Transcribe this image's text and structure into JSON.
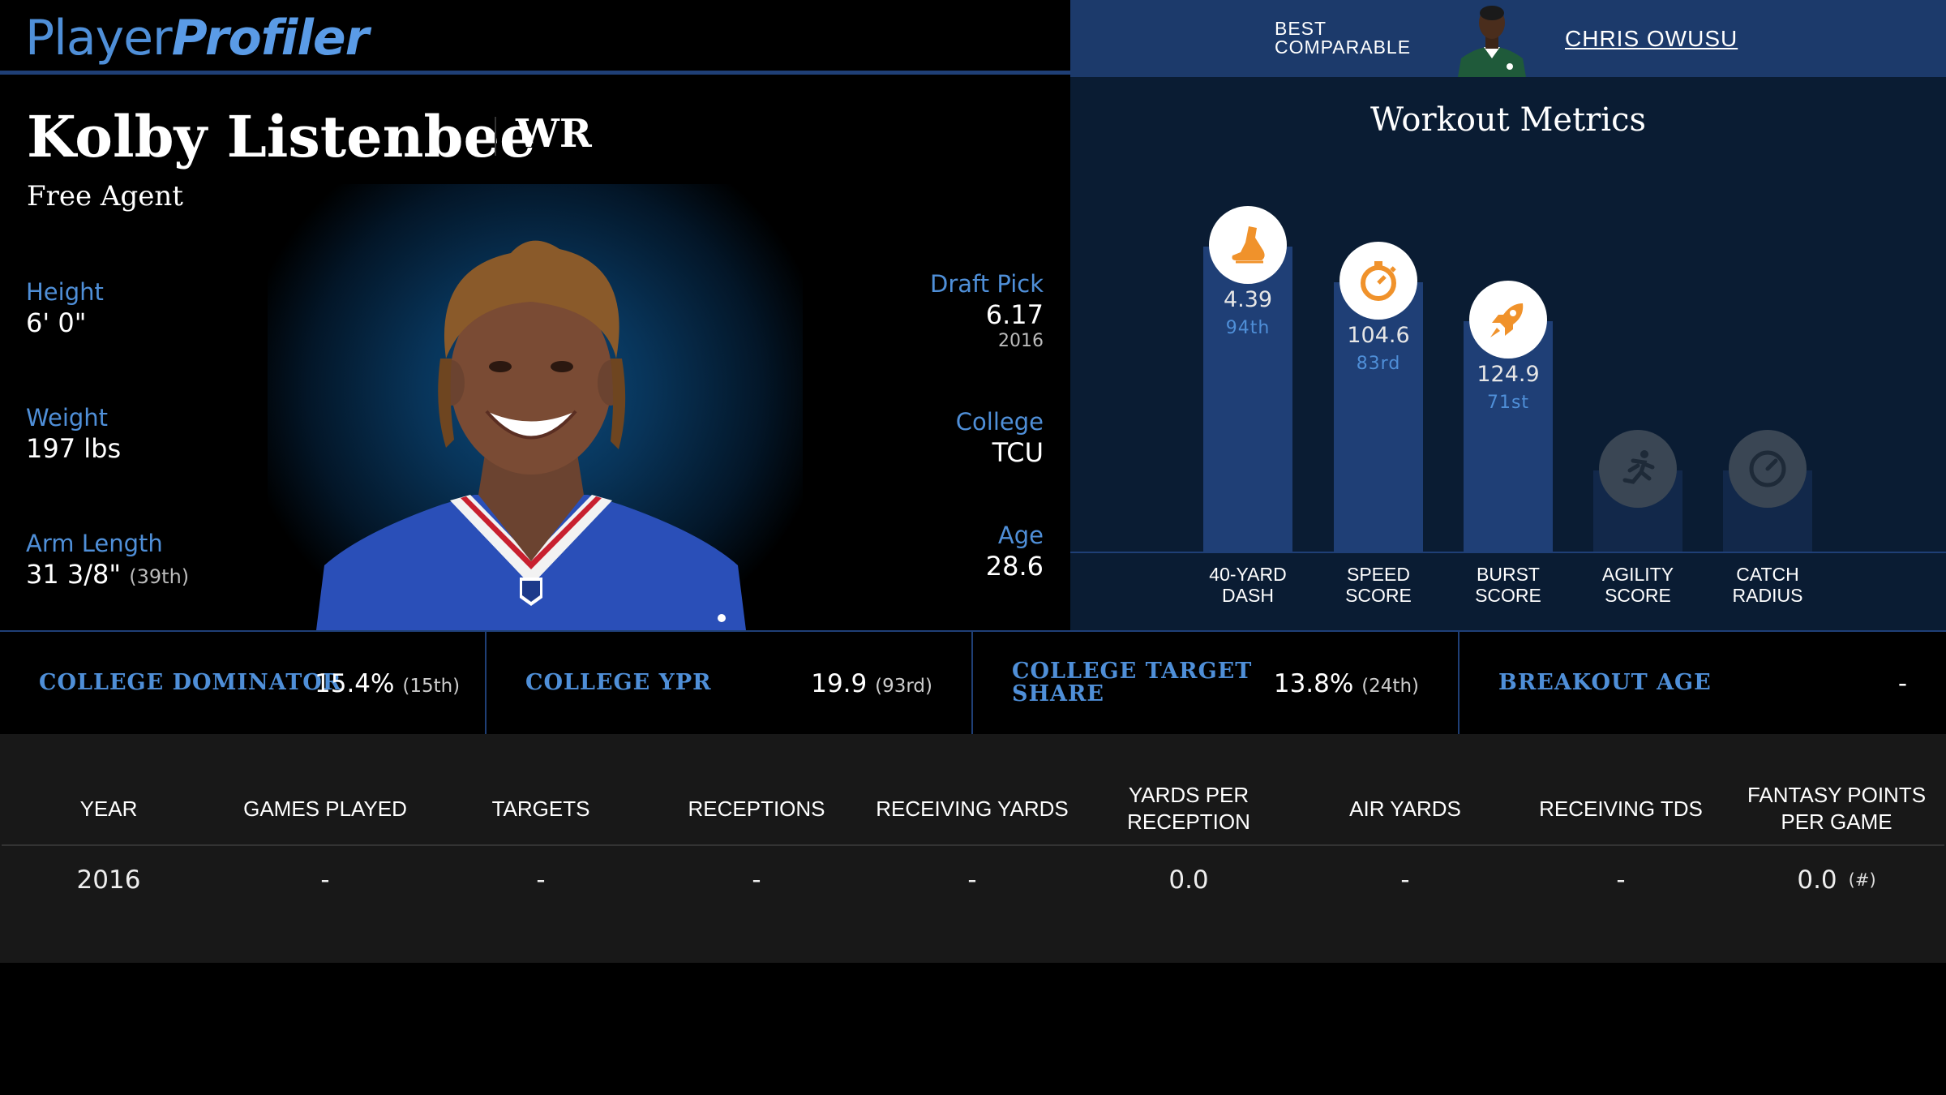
{
  "brand": {
    "part1": "Player",
    "part2": "Profiler"
  },
  "comparable": {
    "label_line1": "BEST",
    "label_line2": "COMPARABLE",
    "name": "CHRIS OWUSU"
  },
  "player": {
    "name": "Kolby Listenbee",
    "position": "WR",
    "team": "Free Agent",
    "height_label": "Height",
    "height": "6' 0\"",
    "weight_label": "Weight",
    "weight": "197 lbs",
    "arm_label": "Arm Length",
    "arm": "31 3/8\"",
    "arm_rank": "(39th)",
    "draft_label": "Draft Pick",
    "draft": "6.17",
    "draft_year": "2016",
    "college_label": "College",
    "college": "TCU",
    "age_label": "Age",
    "age": "28.6"
  },
  "workout": {
    "title": "Workout Metrics",
    "metrics": [
      {
        "line1": "40-YARD",
        "line2": "DASH",
        "value": "4.39",
        "rank": "94th",
        "percentile": 94,
        "icon": "shoe-icon"
      },
      {
        "line1": "SPEED",
        "line2": "SCORE",
        "value": "104.6",
        "rank": "83rd",
        "percentile": 83,
        "icon": "stopwatch-icon"
      },
      {
        "line1": "BURST",
        "line2": "SCORE",
        "value": "124.9",
        "rank": "71st",
        "percentile": 71,
        "icon": "rocket-icon"
      },
      {
        "line1": "AGILITY",
        "line2": "SCORE",
        "value": "",
        "rank": "",
        "percentile": null,
        "icon": "runner-icon"
      },
      {
        "line1": "CATCH",
        "line2": "RADIUS",
        "value": "",
        "rank": "",
        "percentile": null,
        "icon": "target-icon"
      }
    ]
  },
  "college_stats": [
    {
      "label_line1": "COLLEGE DOMINATOR",
      "label_line2": "",
      "value": "15.4%",
      "rank": "(15th)"
    },
    {
      "label_line1": "COLLEGE YPR",
      "label_line2": "",
      "value": "19.9",
      "rank": "(93rd)"
    },
    {
      "label_line1": "COLLEGE TARGET",
      "label_line2": "SHARE",
      "value": "13.8%",
      "rank": "(24th)"
    },
    {
      "label_line1": "BREAKOUT AGE",
      "label_line2": "",
      "value": "-",
      "rank": ""
    }
  ],
  "season_table": {
    "headers": [
      "YEAR",
      "GAMES PLAYED",
      "TARGETS",
      "RECEPTIONS",
      "RECEIVING YARDS",
      "YARDS PER RECEPTION",
      "AIR YARDS",
      "RECEIVING TDS",
      "FANTASY POINTS PER GAME"
    ],
    "rows": [
      [
        "2016",
        "-",
        "-",
        "-",
        "-",
        "0.0",
        "-",
        "-",
        "0.0"
      ]
    ],
    "fp_rank": "(#)"
  },
  "colors": {
    "accent": "#4f8fd8",
    "bar": "#1f3f76",
    "panel": "#0a1c33",
    "icon": "#f0922b"
  }
}
